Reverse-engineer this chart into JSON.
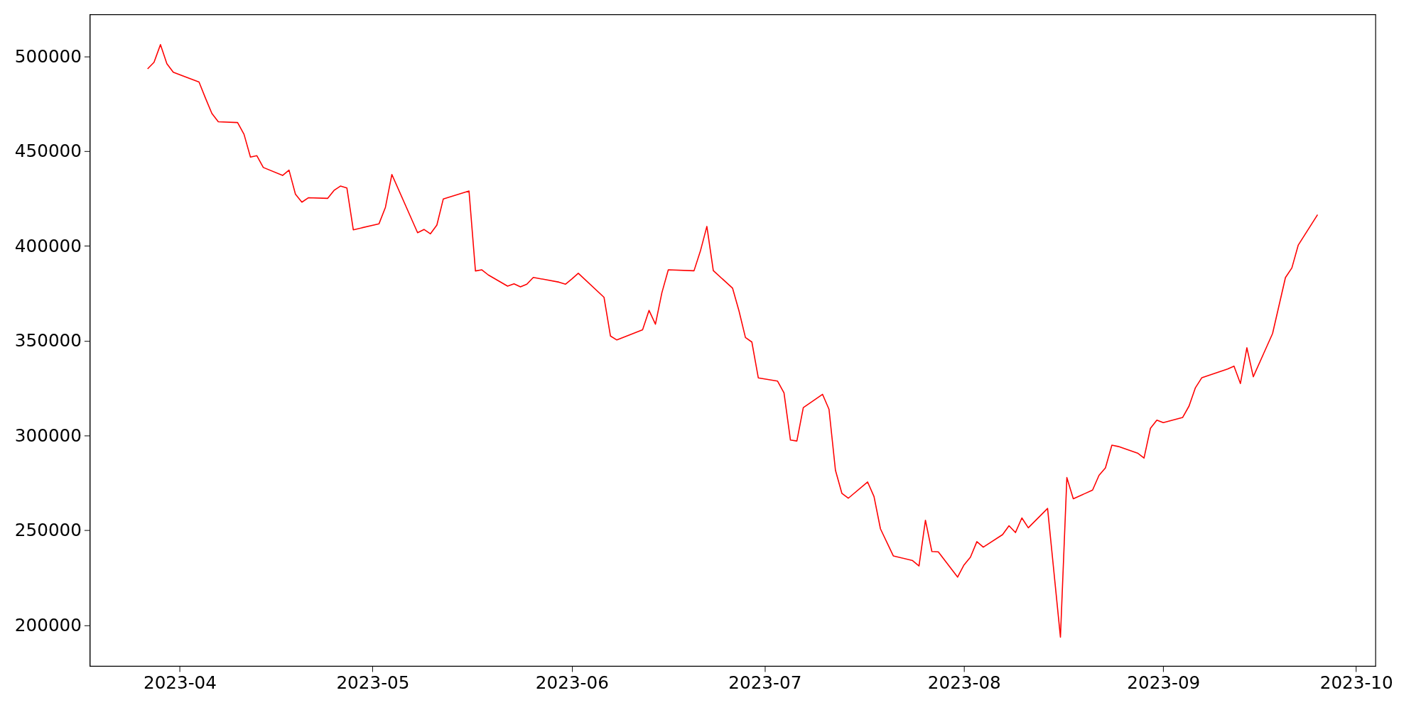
{
  "chart_data": {
    "type": "line",
    "x": [
      "2023-03-27",
      "2023-03-28",
      "2023-03-29",
      "2023-03-30",
      "2023-03-31",
      "2023-04-04",
      "2023-04-05",
      "2023-04-06",
      "2023-04-07",
      "2023-04-10",
      "2023-04-11",
      "2023-04-12",
      "2023-04-13",
      "2023-04-14",
      "2023-04-17",
      "2023-04-18",
      "2023-04-19",
      "2023-04-20",
      "2023-04-21",
      "2023-04-24",
      "2023-04-25",
      "2023-04-26",
      "2023-04-27",
      "2023-04-28",
      "2023-05-02",
      "2023-05-03",
      "2023-05-04",
      "2023-05-08",
      "2023-05-09",
      "2023-05-10",
      "2023-05-11",
      "2023-05-12",
      "2023-05-16",
      "2023-05-17",
      "2023-05-18",
      "2023-05-19",
      "2023-05-22",
      "2023-05-23",
      "2023-05-24",
      "2023-05-25",
      "2023-05-26",
      "2023-05-30",
      "2023-05-31",
      "2023-06-01",
      "2023-06-02",
      "2023-06-06",
      "2023-06-07",
      "2023-06-08",
      "2023-06-12",
      "2023-06-13",
      "2023-06-14",
      "2023-06-15",
      "2023-06-16",
      "2023-06-20",
      "2023-06-21",
      "2023-06-22",
      "2023-06-23",
      "2023-06-26",
      "2023-06-27",
      "2023-06-28",
      "2023-06-29",
      "2023-06-30",
      "2023-07-03",
      "2023-07-04",
      "2023-07-05",
      "2023-07-06",
      "2023-07-07",
      "2023-07-10",
      "2023-07-11",
      "2023-07-12",
      "2023-07-13",
      "2023-07-14",
      "2023-07-17",
      "2023-07-18",
      "2023-07-19",
      "2023-07-21",
      "2023-07-24",
      "2023-07-25",
      "2023-07-26",
      "2023-07-27",
      "2023-07-28",
      "2023-07-31",
      "2023-08-01",
      "2023-08-02",
      "2023-08-03",
      "2023-08-04",
      "2023-08-07",
      "2023-08-08",
      "2023-08-09",
      "2023-08-10",
      "2023-08-11",
      "2023-08-14",
      "2023-08-16",
      "2023-08-17",
      "2023-08-18",
      "2023-08-21",
      "2023-08-22",
      "2023-08-23",
      "2023-08-24",
      "2023-08-25",
      "2023-08-28",
      "2023-08-29",
      "2023-08-30",
      "2023-08-31",
      "2023-09-01",
      "2023-09-04",
      "2023-09-05",
      "2023-09-06",
      "2023-09-07",
      "2023-09-11",
      "2023-09-12",
      "2023-09-13",
      "2023-09-14",
      "2023-09-15",
      "2023-09-18",
      "2023-09-20",
      "2023-09-21",
      "2023-09-22",
      "2023-09-25"
    ],
    "series": [
      {
        "color": "#ff0000",
        "values": [
          493400,
          496900,
          506200,
          496100,
          491600,
          486500,
          478000,
          469900,
          465500,
          465100,
          458900,
          446900,
          447600,
          441400,
          437200,
          440000,
          427300,
          423100,
          425400,
          425100,
          429300,
          431600,
          430600,
          408500,
          411700,
          420400,
          437700,
          407000,
          408700,
          406400,
          411000,
          424800,
          429000,
          386800,
          387400,
          384700,
          378800,
          380000,
          378400,
          379800,
          383400,
          380900,
          379800,
          382600,
          385600,
          372900,
          352500,
          350400,
          355800,
          366000,
          358700,
          375300,
          387400,
          386900,
          397400,
          410300,
          387000,
          377700,
          365700,
          351700,
          349300,
          330400,
          328700,
          322500,
          297600,
          297100,
          314700,
          321700,
          313800,
          281700,
          269500,
          266900,
          275500,
          267800,
          250800,
          236500,
          234000,
          231200,
          255300,
          238800,
          238600,
          225300,
          231700,
          235800,
          244000,
          241100,
          247700,
          252400,
          248800,
          256500,
          251300,
          261500,
          193600,
          277800,
          266600,
          271200,
          279000,
          282900,
          294900,
          294200,
          290700,
          288100,
          303800,
          308100,
          306800,
          309500,
          315500,
          325200,
          330500,
          335100,
          336600,
          327400,
          346300,
          331000,
          353800,
          383300,
          388400,
          400500,
          416500
        ]
      }
    ],
    "xlim": [
      "2023-03-18",
      "2023-10-04"
    ],
    "xticks": [
      {
        "value": "2023-04-01",
        "label": "2023-04"
      },
      {
        "value": "2023-05-01",
        "label": "2023-05"
      },
      {
        "value": "2023-06-01",
        "label": "2023-06"
      },
      {
        "value": "2023-07-01",
        "label": "2023-07"
      },
      {
        "value": "2023-08-01",
        "label": "2023-08"
      },
      {
        "value": "2023-09-01",
        "label": "2023-09"
      },
      {
        "value": "2023-10-01",
        "label": "2023-10"
      }
    ],
    "ylim": [
      178400,
      522100
    ],
    "yticks": [
      200000,
      250000,
      300000,
      350000,
      400000,
      450000,
      500000
    ],
    "grid": false,
    "marker": "none",
    "line_style": "solid"
  }
}
